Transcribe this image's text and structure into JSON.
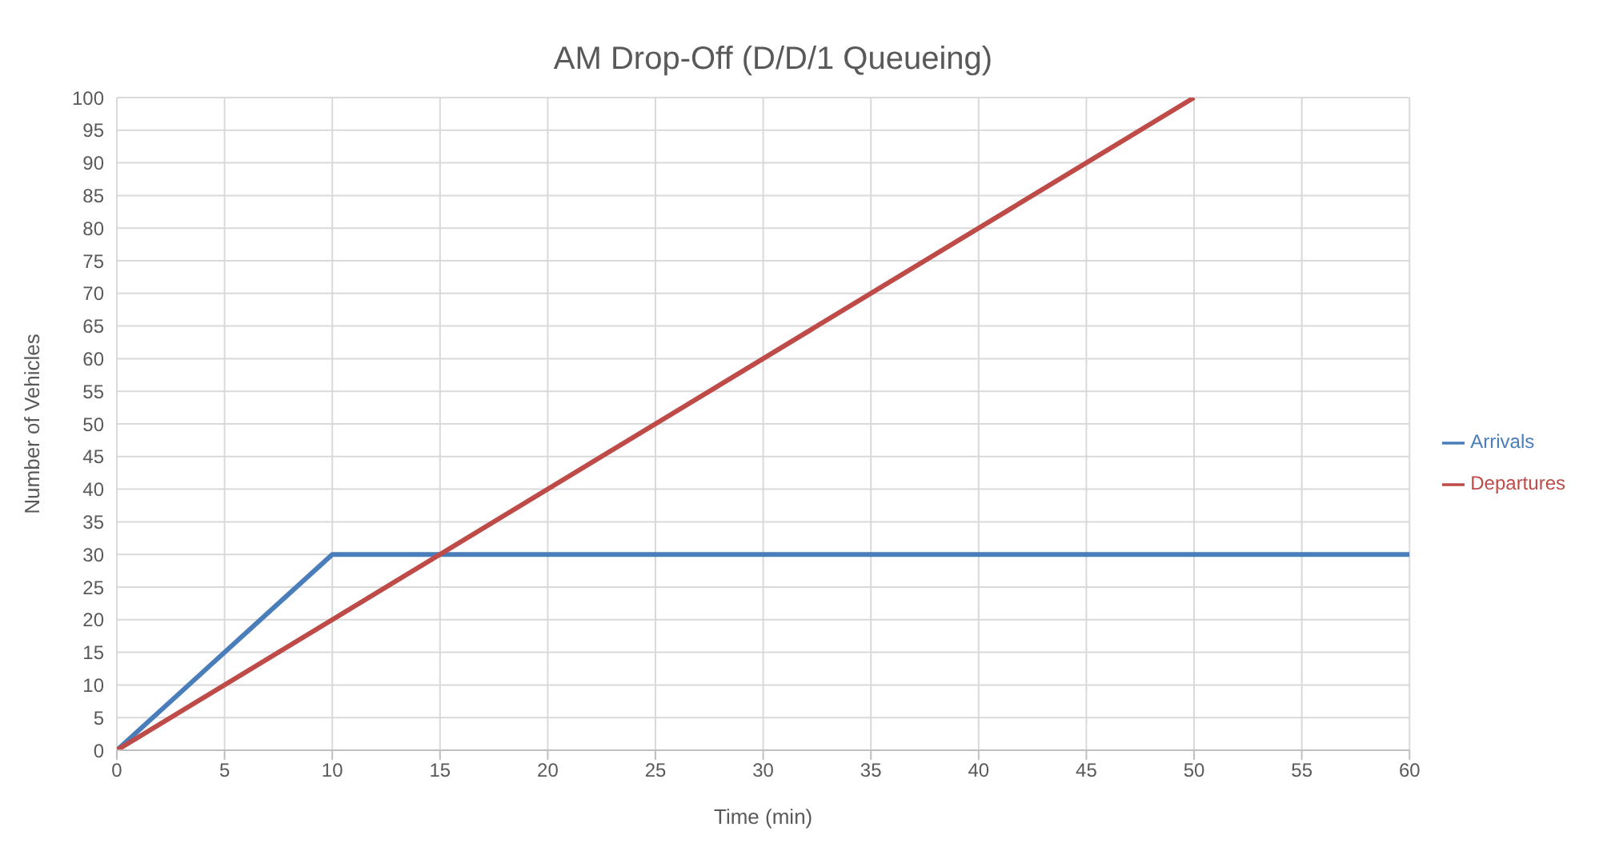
{
  "chart_data": {
    "type": "line",
    "title": "AM Drop-Off (D/D/1 Queueing)",
    "xlabel": "Time (min)",
    "ylabel": "Number of Vehicles",
    "series": [
      {
        "name": "Arrivals",
        "color": "#4a7ebb",
        "x": [
          0,
          10,
          60
        ],
        "values": [
          0,
          30,
          30
        ]
      },
      {
        "name": "Departures",
        "color": "#be4b48",
        "x": [
          0,
          50
        ],
        "values": [
          0,
          100
        ]
      }
    ],
    "xlim": [
      0,
      60
    ],
    "xticks": [
      0,
      5,
      10,
      15,
      20,
      25,
      30,
      35,
      40,
      45,
      50,
      55,
      60
    ],
    "ylim": [
      0,
      100
    ],
    "yticks": [
      0,
      5,
      10,
      15,
      20,
      25,
      30,
      35,
      40,
      45,
      50,
      55,
      60,
      65,
      70,
      75,
      80,
      85,
      90,
      95,
      100
    ],
    "grid": true,
    "legend": "right",
    "marker": "none",
    "line_style": "solid"
  }
}
